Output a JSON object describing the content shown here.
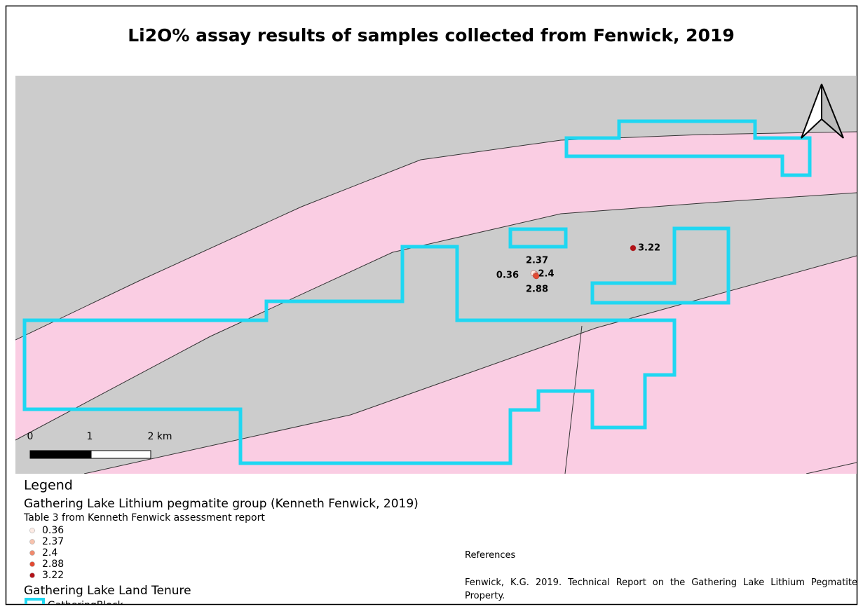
{
  "title": "Li2O% assay results of samples collected from Fenwick, 2019",
  "map": {
    "background_color": "#cccccc",
    "pegmatite_color": "#facde3",
    "tenure_color": "#1fd7f2",
    "samples": [
      {
        "label": "2.37",
        "color": "#f7c2ad"
      },
      {
        "label": "0.36",
        "color": "#fdebe4"
      },
      {
        "label": "2.4",
        "color": "#f08a6d"
      },
      {
        "label": "2.88",
        "color": "#e34a33"
      },
      {
        "label": "3.22",
        "color": "#b31218"
      }
    ],
    "scale_bar": {
      "labels": [
        "0",
        "1",
        "2 km"
      ]
    }
  },
  "legend": {
    "title": "Legend",
    "group": "Gathering Lake Lithium pegmatite group (Kenneth Fenwick, 2019)",
    "layer": "Table 3 from Kenneth Fenwick assessment report",
    "classes": [
      {
        "label": "0.36",
        "color": "#fdebe4"
      },
      {
        "label": "2.37",
        "color": "#f7c2ad"
      },
      {
        "label": "2.4",
        "color": "#f08a6d"
      },
      {
        "label": "2.88",
        "color": "#e34a33"
      },
      {
        "label": "3.22",
        "color": "#b31218"
      }
    ],
    "tenure_title": "Gathering Lake Land Tenure",
    "tenure_item": "GatheringBlock"
  },
  "references": {
    "heading": "References",
    "text": "Fenwick, K.G. 2019. Technical Report on the Gathering Lake Lithium Pegmatite Property."
  }
}
